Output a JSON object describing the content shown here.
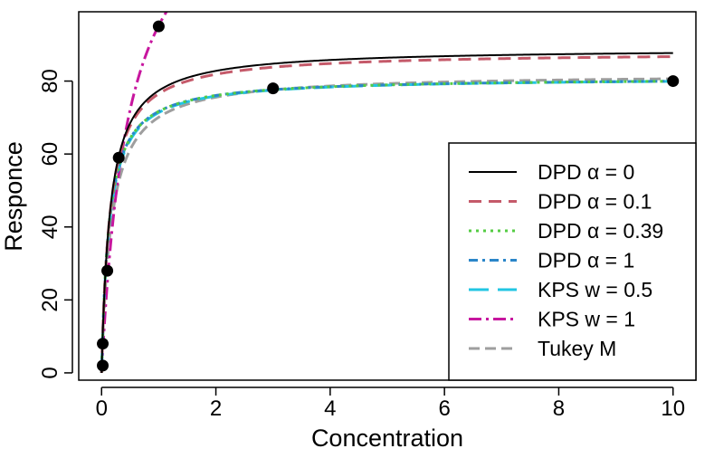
{
  "chart_data": {
    "type": "line",
    "title": "",
    "xlabel": "Concentration",
    "ylabel": "Responce",
    "xlim": [
      -0.4,
      10.4
    ],
    "ylim": [
      -2,
      99
    ],
    "xticks": [
      "0",
      "2",
      "4",
      "6",
      "8",
      "10"
    ],
    "yticks": [
      "0",
      "20",
      "40",
      "60",
      "80"
    ],
    "grid": false,
    "legend_position": "bottom-right",
    "points": [
      {
        "x": 0.02,
        "y": 2
      },
      {
        "x": 0.02,
        "y": 8
      },
      {
        "x": 0.1,
        "y": 28
      },
      {
        "x": 0.3,
        "y": 59
      },
      {
        "x": 1.0,
        "y": 95
      },
      {
        "x": 3.0,
        "y": 78
      },
      {
        "x": 10.0,
        "y": 80
      }
    ],
    "series": [
      {
        "name": "DPD α = 0",
        "vmax": 89.0,
        "km": 0.15,
        "color": "#000000",
        "dash": "",
        "width": 2
      },
      {
        "name": "DPD α = 0.1",
        "vmax": 88.0,
        "km": 0.15,
        "color": "#c55a6a",
        "dash": "14 8",
        "width": 3
      },
      {
        "name": "DPD α = 0.39",
        "vmax": 81.0,
        "km": 0.13,
        "color": "#55cc44",
        "dash": "3 5",
        "width": 3
      },
      {
        "name": "DPD α = 1",
        "vmax": 81.0,
        "km": 0.13,
        "color": "#2b86c9",
        "dash": "10 5 3 5",
        "width": 3
      },
      {
        "name": "KPS w = 0.5",
        "vmax": 81.0,
        "km": 0.135,
        "color": "#22c6e3",
        "dash": "22 10",
        "width": 3
      },
      {
        "name": "KPS w = 1",
        "vmax": 140.0,
        "km": 0.47,
        "color": "#c7169e",
        "dash": "14 5 3 5",
        "width": 3
      },
      {
        "name": "Tukey M",
        "vmax": 82.0,
        "km": 0.17,
        "color": "#9e9e9e",
        "dash": "12 6",
        "width": 3
      }
    ]
  }
}
